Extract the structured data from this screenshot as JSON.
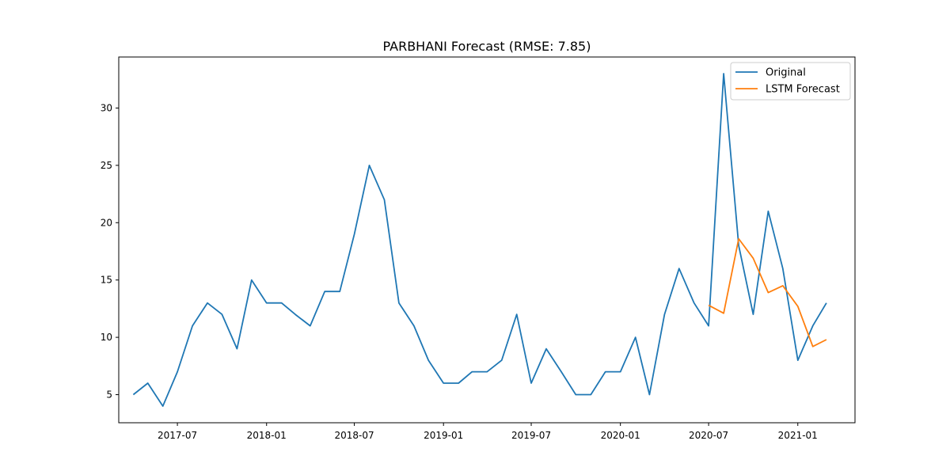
{
  "chart_data": {
    "type": "line",
    "title": "PARBHANI Forecast (RMSE: 7.85)",
    "xlabel": "",
    "ylabel": "",
    "xlim": [
      "2017-03-02",
      "2021-04-29"
    ],
    "ylim": [
      2.55,
      34.45
    ],
    "x_ticks": [
      "2017-07",
      "2018-01",
      "2018-07",
      "2019-01",
      "2019-07",
      "2020-01",
      "2020-07",
      "2021-01"
    ],
    "y_ticks": [
      5,
      10,
      15,
      20,
      25,
      30
    ],
    "grid": false,
    "legend_position": "top-right",
    "series": [
      {
        "name": "Original",
        "color": "#1f77b4",
        "x": [
          "2017-04",
          "2017-05",
          "2017-06",
          "2017-07",
          "2017-08",
          "2017-09",
          "2017-10",
          "2017-11",
          "2017-12",
          "2018-01",
          "2018-02",
          "2018-03",
          "2018-04",
          "2018-05",
          "2018-06",
          "2018-07",
          "2018-08",
          "2018-09",
          "2018-10",
          "2018-11",
          "2018-12",
          "2019-01",
          "2019-02",
          "2019-03",
          "2019-04",
          "2019-05",
          "2019-06",
          "2019-07",
          "2019-08",
          "2019-09",
          "2019-10",
          "2019-11",
          "2019-12",
          "2020-01",
          "2020-02",
          "2020-03",
          "2020-04",
          "2020-05",
          "2020-06",
          "2020-07",
          "2020-08",
          "2020-09",
          "2020-10",
          "2020-11",
          "2020-12",
          "2021-01",
          "2021-02",
          "2021-03"
        ],
        "values": [
          5,
          6,
          4,
          7,
          11,
          13,
          12,
          9,
          15,
          13,
          13,
          12,
          11,
          14,
          14,
          19,
          25,
          22,
          13,
          11,
          8,
          6,
          6,
          7,
          7,
          8,
          12,
          6,
          9,
          7,
          5,
          5,
          7,
          7,
          10,
          5,
          12,
          16,
          13,
          11,
          33,
          18,
          12,
          21,
          16,
          8,
          11,
          13
        ]
      },
      {
        "name": "LSTM Forecast",
        "color": "#ff7f0e",
        "x": [
          "2020-07",
          "2020-08",
          "2020-09",
          "2020-10",
          "2020-11",
          "2020-12",
          "2021-01",
          "2021-02",
          "2021-03"
        ],
        "values": [
          12.8,
          12.1,
          18.6,
          16.9,
          13.9,
          14.5,
          12.7,
          9.2,
          9.8
        ]
      }
    ]
  }
}
